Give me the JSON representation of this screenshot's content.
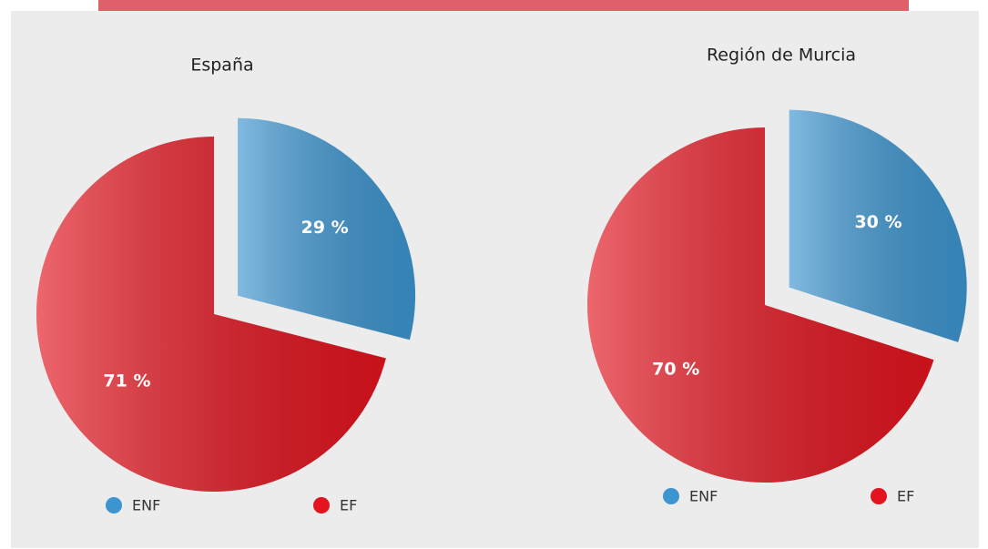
{
  "chart_data": [
    {
      "type": "pie",
      "title": "España",
      "categories": [
        "ENF",
        "EF"
      ],
      "values": [
        29,
        71
      ],
      "value_labels": [
        "29 %",
        "71 %"
      ],
      "colors": [
        "#3d95d0",
        "#e3141f"
      ]
    },
    {
      "type": "pie",
      "title": "Región de Murcia",
      "categories": [
        "ENF",
        "EF"
      ],
      "values": [
        30,
        70
      ],
      "value_labels": [
        "30 %",
        "70 %"
      ],
      "colors": [
        "#3d95d0",
        "#e3141f"
      ]
    }
  ]
}
